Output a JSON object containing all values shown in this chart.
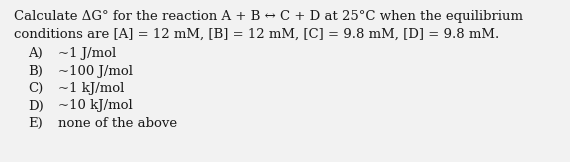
{
  "background_color": "#f2f2f2",
  "text_color": "#1a1a1a",
  "line1": "Calculate ΔG° for the reaction A + B ↔ C + D at 25°C when the equilibrium",
  "line2": "conditions are [A] = 12 mM, [B] = 12 mM, [C] = 9.8 mM, [D] = 9.8 mM.",
  "options": [
    {
      "label": "A)",
      "text": "~1 J/mol"
    },
    {
      "label": "B)",
      "text": "~100 J/mol"
    },
    {
      "label": "C)",
      "text": "~1 kJ/mol"
    },
    {
      "label": "D)",
      "text": "~10 kJ/mol"
    },
    {
      "label": "E)",
      "text": "none of the above"
    }
  ],
  "font_size_body": 9.5,
  "font_size_options": 9.5,
  "font_family": "serif",
  "fig_width": 5.7,
  "fig_height": 1.62,
  "dpi": 100
}
